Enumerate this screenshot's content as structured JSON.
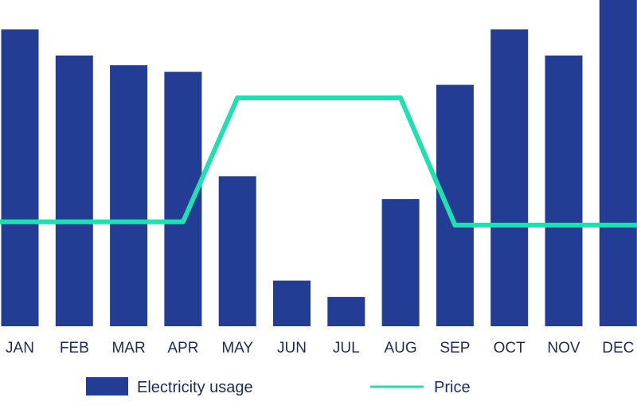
{
  "chart_data": {
    "type": "bar",
    "categories": [
      "JAN",
      "FEB",
      "MAR",
      "APR",
      "MAY",
      "JUN",
      "JUL",
      "AUG",
      "SEP",
      "OCT",
      "NOV",
      "DEC"
    ],
    "series": [
      {
        "name": "Electricity usage",
        "type": "bar",
        "values": [
          91,
          83,
          80,
          78,
          46,
          14,
          9,
          39,
          74,
          91,
          83,
          100
        ]
      },
      {
        "name": "Price",
        "type": "line",
        "values": [
          32,
          32,
          32,
          32,
          70,
          70,
          70,
          70,
          31,
          31,
          31,
          31
        ]
      }
    ],
    "ylim": [
      0,
      100
    ],
    "grid": false,
    "legend": "bottom",
    "colors": {
      "bar": "#233d95",
      "line": "#1ee0b0",
      "text": "#1d2b5c"
    }
  },
  "legend": {
    "bar_label": "Electricity usage",
    "line_label": "Price"
  }
}
